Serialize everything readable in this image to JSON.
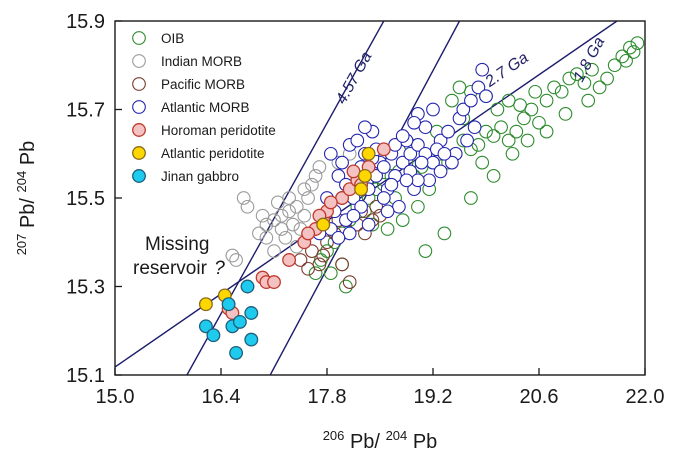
{
  "chart_data": {
    "type": "scatter",
    "x_axis": {
      "label_parts": [
        "206",
        "Pb/",
        "204",
        "Pb"
      ],
      "min": 15.0,
      "max": 22.0,
      "ticks": [
        "15.0",
        "16.4",
        "17.8",
        "19.2",
        "20.6",
        "22.0"
      ]
    },
    "y_axis": {
      "label_parts": [
        "207",
        "Pb/",
        "204",
        "Pb"
      ],
      "min": 15.1,
      "max": 15.9,
      "ticks": [
        "15.1",
        "15.3",
        "15.5",
        "15.7",
        "15.9"
      ]
    },
    "isochrons": [
      {
        "label": "4.57 Ga",
        "points": [
          [
            15.95,
            15.1
          ],
          [
            18.55,
            15.9
          ]
        ],
        "label_at": [
          18.03,
          15.71
        ]
      },
      {
        "label": "2.7 Ga",
        "points": [
          [
            15.0,
            15.118
          ],
          [
            21.63,
            15.9
          ]
        ],
        "label_at": [
          19.95,
          15.75
        ]
      },
      {
        "label": "1.8 Ga",
        "points": [
          [
            17.05,
            15.1
          ],
          [
            19.55,
            15.9
          ]
        ],
        "label_at": [
          21.17,
          15.76
        ]
      }
    ],
    "annotation": {
      "lines": [
        "Missing",
        "reservoir"
      ],
      "mark": "?",
      "at": [
        16.1,
        15.34
      ]
    },
    "legend_position": "top-left",
    "series": [
      {
        "name": "OIB",
        "style": "open",
        "stroke": "#2e8b2e",
        "fill": "none",
        "points": [
          [
            17.65,
            15.33
          ],
          [
            17.72,
            15.36
          ],
          [
            17.8,
            15.38
          ],
          [
            17.9,
            15.4
          ],
          [
            18.0,
            15.42
          ],
          [
            18.05,
            15.3
          ],
          [
            18.0,
            15.35
          ],
          [
            18.1,
            15.45
          ],
          [
            18.2,
            15.48
          ],
          [
            18.3,
            15.47
          ],
          [
            18.35,
            15.5
          ],
          [
            18.45,
            15.52
          ],
          [
            18.55,
            15.53
          ],
          [
            18.65,
            15.55
          ],
          [
            18.75,
            15.56
          ],
          [
            18.85,
            15.58
          ],
          [
            18.95,
            15.55
          ],
          [
            19.05,
            15.57
          ],
          [
            19.15,
            15.52
          ],
          [
            19.2,
            15.58
          ],
          [
            19.3,
            15.6
          ],
          [
            19.4,
            15.58
          ],
          [
            19.5,
            15.6
          ],
          [
            19.6,
            15.63
          ],
          [
            19.7,
            15.61
          ],
          [
            19.8,
            15.62
          ],
          [
            19.9,
            15.65
          ],
          [
            20.0,
            15.64
          ],
          [
            20.1,
            15.66
          ],
          [
            20.2,
            15.63
          ],
          [
            20.3,
            15.65
          ],
          [
            20.4,
            15.68
          ],
          [
            20.5,
            15.7
          ],
          [
            20.6,
            15.67
          ],
          [
            20.7,
            15.72
          ],
          [
            20.8,
            15.75
          ],
          [
            20.9,
            15.74
          ],
          [
            21.0,
            15.77
          ],
          [
            21.1,
            15.78
          ],
          [
            21.2,
            15.76
          ],
          [
            21.3,
            15.79
          ],
          [
            21.4,
            15.75
          ],
          [
            21.5,
            15.77
          ],
          [
            21.6,
            15.8
          ],
          [
            21.7,
            15.82
          ],
          [
            21.75,
            15.81
          ],
          [
            21.8,
            15.84
          ],
          [
            21.9,
            15.85
          ],
          [
            21.85,
            15.83
          ],
          [
            19.45,
            15.72
          ],
          [
            19.55,
            15.75
          ],
          [
            19.7,
            15.74
          ],
          [
            19.9,
            15.73
          ],
          [
            20.05,
            15.7
          ],
          [
            20.2,
            15.72
          ],
          [
            20.35,
            15.71
          ],
          [
            19.35,
            15.42
          ],
          [
            19.7,
            15.5
          ],
          [
            20.0,
            15.55
          ],
          [
            20.25,
            15.6
          ],
          [
            20.45,
            15.63
          ],
          [
            20.7,
            15.65
          ],
          [
            19.1,
            15.38
          ],
          [
            18.8,
            15.45
          ],
          [
            19.0,
            15.48
          ],
          [
            18.6,
            15.43
          ],
          [
            18.4,
            15.44
          ],
          [
            19.85,
            15.58
          ],
          [
            20.55,
            15.74
          ],
          [
            20.95,
            15.69
          ],
          [
            21.25,
            15.72
          ],
          [
            19.25,
            15.65
          ],
          [
            19.6,
            15.68
          ],
          [
            18.9,
            15.62
          ],
          [
            18.7,
            15.5
          ],
          [
            17.85,
            15.33
          ]
        ]
      },
      {
        "name": "Indian MORB",
        "style": "open",
        "stroke": "#9a9a9a",
        "fill": "none",
        "points": [
          [
            16.9,
            15.42
          ],
          [
            17.0,
            15.44
          ],
          [
            17.1,
            15.45
          ],
          [
            17.2,
            15.46
          ],
          [
            17.3,
            15.47
          ],
          [
            17.4,
            15.48
          ],
          [
            16.7,
            15.5
          ],
          [
            16.75,
            15.48
          ],
          [
            16.55,
            15.37
          ],
          [
            16.6,
            15.36
          ],
          [
            17.5,
            15.52
          ],
          [
            17.6,
            15.53
          ],
          [
            17.3,
            15.5
          ],
          [
            17.45,
            15.43
          ],
          [
            17.0,
            15.41
          ],
          [
            17.2,
            15.43
          ],
          [
            17.65,
            15.55
          ],
          [
            17.5,
            15.46
          ],
          [
            17.35,
            15.44
          ],
          [
            17.55,
            15.5
          ],
          [
            16.95,
            15.46
          ],
          [
            17.15,
            15.49
          ],
          [
            17.7,
            15.57
          ],
          [
            17.25,
            15.41
          ],
          [
            17.4,
            15.39
          ],
          [
            17.1,
            15.38
          ],
          [
            17.95,
            15.58
          ],
          [
            18.1,
            15.6
          ]
        ]
      },
      {
        "name": "Pacific MORB",
        "style": "open",
        "stroke": "#7a3b2e",
        "fill": "none",
        "points": [
          [
            17.45,
            15.36
          ],
          [
            17.6,
            15.38
          ],
          [
            17.8,
            15.4
          ],
          [
            17.9,
            15.42
          ],
          [
            18.0,
            15.35
          ],
          [
            18.1,
            15.31
          ],
          [
            18.2,
            15.44
          ],
          [
            18.3,
            15.42
          ],
          [
            18.4,
            15.45
          ],
          [
            18.5,
            15.46
          ],
          [
            17.7,
            15.35
          ],
          [
            17.55,
            15.34
          ],
          [
            17.95,
            15.45
          ],
          [
            18.25,
            15.47
          ],
          [
            17.75,
            15.37
          ],
          [
            18.45,
            15.48
          ]
        ]
      },
      {
        "name": "Atlantic MORB",
        "style": "open",
        "stroke": "#2424b0",
        "fill": "#ffffff",
        "points": [
          [
            17.85,
            15.6
          ],
          [
            17.95,
            15.55
          ],
          [
            18.0,
            15.5
          ],
          [
            18.05,
            15.45
          ],
          [
            18.1,
            15.42
          ],
          [
            18.15,
            15.5
          ],
          [
            18.2,
            15.55
          ],
          [
            18.3,
            15.6
          ],
          [
            18.4,
            15.65
          ],
          [
            18.5,
            15.58
          ],
          [
            18.6,
            15.52
          ],
          [
            18.7,
            15.55
          ],
          [
            18.8,
            15.58
          ],
          [
            18.9,
            15.6
          ],
          [
            19.0,
            15.62
          ],
          [
            19.1,
            15.6
          ],
          [
            19.2,
            15.58
          ],
          [
            19.3,
            15.63
          ],
          [
            19.4,
            15.65
          ],
          [
            19.5,
            15.6
          ],
          [
            19.55,
            15.68
          ],
          [
            19.6,
            15.7
          ],
          [
            19.7,
            15.72
          ],
          [
            19.8,
            15.75
          ],
          [
            19.9,
            15.73
          ],
          [
            19.85,
            15.79
          ],
          [
            19.0,
            15.69
          ],
          [
            19.2,
            15.7
          ],
          [
            19.3,
            15.56
          ],
          [
            18.95,
            15.52
          ],
          [
            18.75,
            15.48
          ],
          [
            18.55,
            15.5
          ],
          [
            18.35,
            15.52
          ],
          [
            18.25,
            15.48
          ],
          [
            18.45,
            15.55
          ],
          [
            18.65,
            15.6
          ],
          [
            18.85,
            15.63
          ],
          [
            19.05,
            15.58
          ],
          [
            19.15,
            15.54
          ],
          [
            19.45,
            15.58
          ],
          [
            19.65,
            15.63
          ],
          [
            19.75,
            15.66
          ],
          [
            17.75,
            15.45
          ],
          [
            17.8,
            15.5
          ],
          [
            17.9,
            15.47
          ],
          [
            18.0,
            15.58
          ],
          [
            18.1,
            15.62
          ],
          [
            18.2,
            15.63
          ],
          [
            18.3,
            15.66
          ],
          [
            18.4,
            15.59
          ],
          [
            18.55,
            15.57
          ],
          [
            18.7,
            15.62
          ],
          [
            18.8,
            15.64
          ],
          [
            18.9,
            15.56
          ],
          [
            19.0,
            15.54
          ],
          [
            19.25,
            15.61
          ],
          [
            19.35,
            15.6
          ],
          [
            17.85,
            15.43
          ],
          [
            17.95,
            15.41
          ],
          [
            18.15,
            15.46
          ],
          [
            18.35,
            15.44
          ],
          [
            18.6,
            15.47
          ],
          [
            19.1,
            15.66
          ],
          [
            18.95,
            15.67
          ],
          [
            17.7,
            15.42
          ],
          [
            18.05,
            15.53
          ],
          [
            18.25,
            15.57
          ],
          [
            18.45,
            15.61
          ],
          [
            18.65,
            15.53
          ],
          [
            18.85,
            15.54
          ]
        ]
      },
      {
        "name": "Horoman peridotite",
        "style": "filled",
        "stroke": "#c0392b",
        "fill": "#f4c2c2",
        "points": [
          [
            16.5,
            15.25
          ],
          [
            16.55,
            15.24
          ],
          [
            16.95,
            15.32
          ],
          [
            17.0,
            15.31
          ],
          [
            17.1,
            15.31
          ],
          [
            17.3,
            15.36
          ],
          [
            17.5,
            15.4
          ],
          [
            17.65,
            15.43
          ],
          [
            17.75,
            15.45
          ],
          [
            17.8,
            15.47
          ],
          [
            18.0,
            15.5
          ],
          [
            18.1,
            15.52
          ],
          [
            18.2,
            15.54
          ],
          [
            18.35,
            15.57
          ],
          [
            18.55,
            15.61
          ],
          [
            17.85,
            15.49
          ],
          [
            18.25,
            15.53
          ],
          [
            17.55,
            15.42
          ],
          [
            17.7,
            15.46
          ],
          [
            18.15,
            15.56
          ]
        ]
      },
      {
        "name": "Atlantic peridotite",
        "style": "filled",
        "stroke": "#8b6a1a",
        "fill": "#ffd700",
        "points": [
          [
            16.2,
            15.26
          ],
          [
            16.45,
            15.28
          ],
          [
            17.75,
            15.44
          ],
          [
            18.25,
            15.52
          ],
          [
            18.3,
            15.55
          ],
          [
            18.35,
            15.6
          ]
        ]
      },
      {
        "name": "Jinan gabbro",
        "style": "filled",
        "stroke": "#1f5f7a",
        "fill": "#1ecbef",
        "points": [
          [
            16.2,
            15.21
          ],
          [
            16.3,
            15.19
          ],
          [
            16.5,
            15.26
          ],
          [
            16.55,
            15.21
          ],
          [
            16.65,
            15.22
          ],
          [
            16.6,
            15.15
          ],
          [
            16.75,
            15.3
          ],
          [
            16.8,
            15.24
          ],
          [
            16.8,
            15.18
          ]
        ]
      }
    ]
  }
}
